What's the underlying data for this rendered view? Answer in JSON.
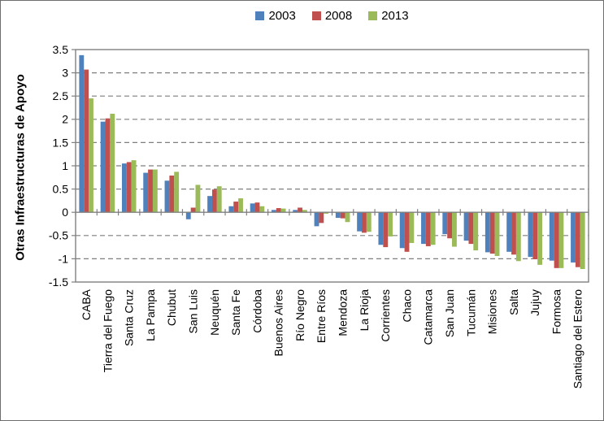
{
  "chart_data": {
    "type": "bar",
    "title": "",
    "xlabel": "",
    "ylabel": "Otras Infraestructuras de Apoyo",
    "ylim": [
      -1.5,
      3.5
    ],
    "ytick_step": 0.5,
    "grid": "horizontal-dashed",
    "legend_position": "top-center",
    "categories": [
      "CABA",
      "Tierra del Fuego",
      "Santa Cruz",
      "La Pampa",
      "Chubut",
      "San Luis",
      "Neuquén",
      "Santa Fe",
      "Córdoba",
      "Buenos Aires",
      "Río Negro",
      "Entre Ríos",
      "Mendoza",
      "La Rioja",
      "Corrientes",
      "Chaco",
      "Catamarca",
      "San Juan",
      "Tucumán",
      "Misiones",
      "Salta",
      "Jujuy",
      "Formosa",
      "Santiago del Estero"
    ],
    "series": [
      {
        "name": "2003",
        "color": "#4F81BD",
        "values": [
          3.38,
          1.95,
          1.05,
          0.85,
          0.68,
          -0.15,
          0.35,
          0.13,
          0.19,
          0.05,
          0.05,
          -0.3,
          -0.12,
          -0.41,
          -0.7,
          -0.77,
          -0.68,
          -0.47,
          -0.61,
          -0.86,
          -0.85,
          -0.96,
          -1.04,
          -1.08
        ]
      },
      {
        "name": "2008",
        "color": "#C0504D",
        "values": [
          3.07,
          2.02,
          1.08,
          0.92,
          0.79,
          0.1,
          0.49,
          0.23,
          0.21,
          0.09,
          0.1,
          -0.23,
          -0.13,
          -0.44,
          -0.75,
          -0.85,
          -0.73,
          -0.56,
          -0.68,
          -0.89,
          -0.91,
          -1.01,
          -1.2,
          -1.18
        ]
      },
      {
        "name": "2013",
        "color": "#9BBB59",
        "values": [
          2.45,
          2.12,
          1.12,
          0.92,
          0.87,
          0.59,
          0.56,
          0.3,
          0.13,
          0.08,
          0.05,
          -0.03,
          -0.21,
          -0.42,
          -0.52,
          -0.66,
          -0.7,
          -0.74,
          -0.82,
          -0.94,
          -1.05,
          -1.13,
          -1.2,
          -1.22
        ]
      }
    ],
    "colors": {
      "grid": "#7F7F7F",
      "axis": "#808080",
      "text": "#000000"
    }
  }
}
